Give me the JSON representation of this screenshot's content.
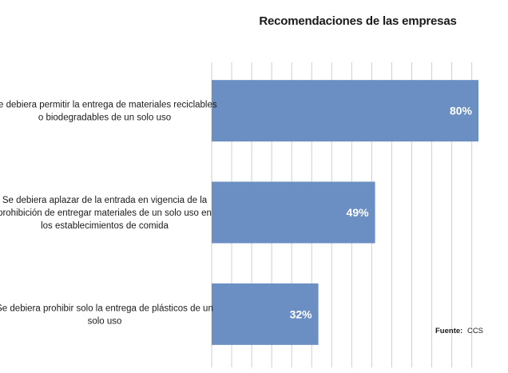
{
  "chart_data": {
    "type": "bar",
    "orientation": "horizontal",
    "title": "Recomendaciones de las empresas",
    "categories": [
      [
        "Se debiera permitir la entrega de materiales reciclables",
        "o biodegradables de un solo uso"
      ],
      [
        "Se debiera aplazar de la entrada en vigencia de la",
        "prohibición de entregar materiales de un solo uso en",
        "los establecimientos de comida"
      ],
      [
        "Se debiera prohibir solo la entrega de plásticos de un",
        "solo uso"
      ]
    ],
    "values": [
      80,
      49,
      32
    ],
    "value_labels": [
      "80%",
      "49%",
      "32%"
    ],
    "unit": "%",
    "xlim": [
      0,
      80
    ],
    "x_gridline_step": 6,
    "bar_color": "#6b8fc2",
    "grid_color": "#d0d0d0",
    "grid": true,
    "legend": null
  },
  "source": {
    "label": "Fuente:",
    "value": "CCS"
  }
}
